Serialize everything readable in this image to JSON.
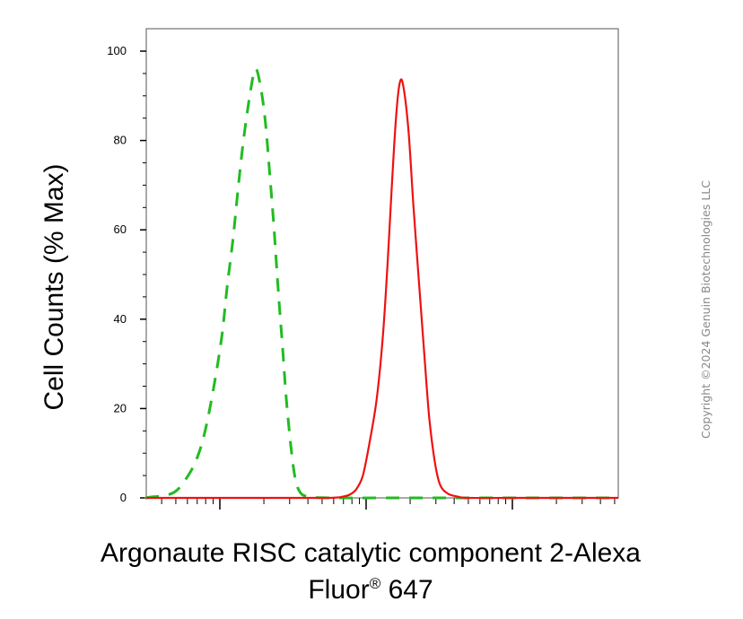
{
  "chart_data": {
    "type": "line",
    "title": "",
    "ylabel": "Cell Counts (% Max)",
    "xlabel_line1": "Argonaute RISC catalytic component 2-Alexa",
    "xlabel_line2_main": "Fluor",
    "xlabel_line2_sup": "®",
    "xlabel_line2_end": " 647",
    "xscale": "log",
    "xlim": [
      1,
      10000
    ],
    "ylim": [
      0,
      100
    ],
    "yticks": [
      "0",
      "20",
      "40",
      "60",
      "80",
      "100"
    ],
    "grid": false,
    "legend": "none",
    "series": [
      {
        "style": "dashed",
        "color": "#22bb22",
        "x": [
          1.5,
          2.6,
          3.4,
          4.2,
          5.0,
          5.8,
          6.8,
          7.8,
          9.0,
          10.3,
          11.2,
          12.3,
          13.4,
          14.5,
          16.0,
          17.5,
          19.0,
          20.5,
          22.0,
          23.5,
          25.0,
          26.8,
          28.5,
          30.5,
          32.5,
          35.0,
          40.0,
          60.0,
          200,
          1000,
          10000
        ],
        "y": [
          0,
          0,
          0.2,
          0.5,
          1.5,
          4,
          8,
          14,
          24,
          36,
          47,
          58,
          70,
          80,
          90,
          96,
          92,
          84,
          72,
          60,
          47,
          34,
          22,
          12,
          5,
          1.5,
          0.3,
          0,
          0,
          0,
          0
        ]
      },
      {
        "style": "solid",
        "color": "#ee1111",
        "x": [
          1,
          20,
          55,
          70,
          78,
          86,
          95,
          105,
          118,
          130,
          140,
          150,
          160,
          170,
          180,
          195,
          210,
          230,
          250,
          270,
          295,
          320,
          360,
          420,
          500,
          1000,
          10000
        ],
        "y": [
          0,
          0,
          0,
          0.3,
          0.8,
          2,
          5,
          12,
          22,
          36,
          52,
          70,
          85,
          93,
          92,
          82,
          66,
          48,
          32,
          18,
          8,
          3,
          1,
          0.3,
          0,
          0,
          0
        ]
      }
    ]
  },
  "copyright": "Copyright ©2024 Genuin Biotechnologies LLC"
}
